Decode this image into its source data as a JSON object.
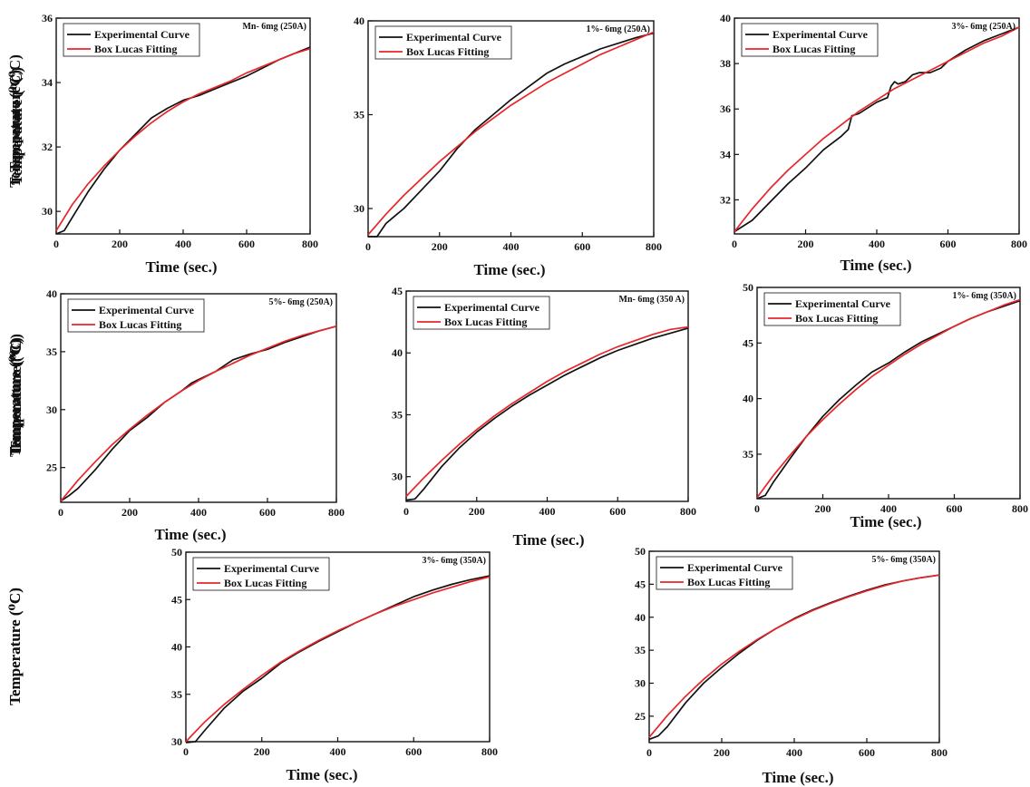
{
  "chart_data": [
    {
      "type": "line",
      "annotation": "Mn- 6mg (250A)",
      "xlabel": "Time (sec.)",
      "ylabel": "Temperature (⁰C)",
      "xlim": [
        0,
        800
      ],
      "ylim": [
        29.3,
        36
      ],
      "xticks": [
        0,
        200,
        400,
        600,
        800
      ],
      "yticks": [
        30,
        32,
        34,
        36
      ],
      "legend": [
        "Experimental Curve",
        "Box Lucas Fitting"
      ],
      "series": [
        {
          "name": "Experimental Curve",
          "x": [
            0,
            25,
            50,
            100,
            150,
            200,
            250,
            300,
            350,
            400,
            450,
            500,
            550,
            600,
            650,
            700,
            750,
            800
          ],
          "values": [
            29.3,
            29.4,
            29.8,
            30.6,
            31.3,
            31.9,
            32.4,
            32.9,
            33.2,
            33.45,
            33.6,
            33.8,
            34.0,
            34.2,
            34.45,
            34.7,
            34.9,
            35.1
          ]
        },
        {
          "name": "Box Lucas Fitting",
          "x": [
            0,
            50,
            100,
            150,
            200,
            250,
            300,
            350,
            400,
            450,
            500,
            550,
            600,
            650,
            700,
            750,
            800
          ],
          "values": [
            29.4,
            30.2,
            30.85,
            31.4,
            31.9,
            32.35,
            32.75,
            33.1,
            33.4,
            33.65,
            33.85,
            34.05,
            34.3,
            34.5,
            34.7,
            34.9,
            35.05
          ]
        }
      ]
    },
    {
      "type": "line",
      "annotation": "1%- 6mg (250A)",
      "xlabel": "Time (sec.)",
      "ylabel": "Temperature (⁰C)",
      "xlim": [
        0,
        800
      ],
      "ylim": [
        28.5,
        40
      ],
      "xticks": [
        0,
        200,
        400,
        600,
        800
      ],
      "yticks": [
        30,
        35,
        40
      ],
      "legend": [
        "Experimental Curve",
        "Box Lucas Fitting"
      ],
      "series": [
        {
          "name": "Experimental Curve",
          "x": [
            0,
            25,
            50,
            75,
            100,
            150,
            200,
            250,
            300,
            350,
            400,
            450,
            500,
            550,
            600,
            650,
            700,
            750,
            800
          ],
          "values": [
            28.5,
            28.5,
            29.2,
            29.6,
            30.0,
            31.0,
            32.0,
            33.2,
            34.2,
            35.0,
            35.8,
            36.5,
            37.2,
            37.7,
            38.1,
            38.5,
            38.8,
            39.1,
            39.35
          ]
        },
        {
          "name": "Box Lucas Fitting",
          "x": [
            0,
            50,
            100,
            150,
            200,
            250,
            300,
            350,
            400,
            450,
            500,
            550,
            600,
            650,
            700,
            750,
            800
          ],
          "values": [
            28.6,
            29.7,
            30.7,
            31.6,
            32.5,
            33.3,
            34.1,
            34.8,
            35.5,
            36.1,
            36.7,
            37.2,
            37.7,
            38.2,
            38.6,
            39.0,
            39.4
          ]
        }
      ]
    },
    {
      "type": "line",
      "annotation": "3%- 6mg (250A)",
      "xlabel": "Time (sec.)",
      "ylabel": "Temperature (⁰C)",
      "xlim": [
        0,
        800
      ],
      "ylim": [
        30.5,
        40
      ],
      "xticks": [
        0,
        200,
        400,
        600,
        800
      ],
      "yticks": [
        32,
        34,
        36,
        38,
        40
      ],
      "legend": [
        "Experimental Curve",
        "Box Lucas Fitting"
      ],
      "series": [
        {
          "name": "Experimental Curve",
          "x": [
            0,
            50,
            100,
            150,
            200,
            250,
            300,
            320,
            330,
            350,
            400,
            430,
            440,
            450,
            460,
            480,
            500,
            520,
            550,
            580,
            600,
            650,
            700,
            750,
            800
          ],
          "values": [
            30.6,
            31.1,
            31.9,
            32.7,
            33.4,
            34.2,
            34.8,
            35.1,
            35.7,
            35.8,
            36.3,
            36.5,
            37.0,
            37.2,
            37.1,
            37.2,
            37.5,
            37.6,
            37.6,
            37.8,
            38.1,
            38.6,
            39.0,
            39.3,
            39.6
          ]
        },
        {
          "name": "Box Lucas Fitting",
          "x": [
            0,
            50,
            100,
            150,
            200,
            250,
            300,
            350,
            400,
            450,
            500,
            550,
            600,
            650,
            700,
            750,
            800
          ],
          "values": [
            30.6,
            31.6,
            32.5,
            33.3,
            34.0,
            34.7,
            35.3,
            35.9,
            36.4,
            36.9,
            37.3,
            37.7,
            38.1,
            38.5,
            38.9,
            39.2,
            39.6
          ]
        }
      ]
    },
    {
      "type": "line",
      "annotation": "5%- 6mg (250A)",
      "xlabel": "Time (sec.)",
      "ylabel": "Temperature (⁰C)",
      "xlim": [
        0,
        800
      ],
      "ylim": [
        22,
        40
      ],
      "xticks": [
        0,
        200,
        400,
        600,
        800
      ],
      "yticks": [
        25,
        30,
        35,
        40
      ],
      "legend": [
        "Experimental Curve",
        "Box Lucas Fitting"
      ],
      "series": [
        {
          "name": "Experimental Curve",
          "x": [
            0,
            25,
            50,
            100,
            150,
            200,
            250,
            300,
            350,
            380,
            400,
            450,
            500,
            550,
            600,
            650,
            700,
            750,
            800
          ],
          "values": [
            22.1,
            22.6,
            23.2,
            24.8,
            26.6,
            28.2,
            29.3,
            30.6,
            31.6,
            32.3,
            32.6,
            33.3,
            34.3,
            34.8,
            35.2,
            35.8,
            36.3,
            36.8,
            37.2
          ]
        },
        {
          "name": "Box Lucas Fitting",
          "x": [
            0,
            50,
            100,
            150,
            200,
            250,
            300,
            350,
            400,
            450,
            500,
            550,
            600,
            650,
            700,
            750,
            800
          ],
          "values": [
            22.1,
            23.9,
            25.5,
            27.0,
            28.3,
            29.5,
            30.6,
            31.6,
            32.5,
            33.3,
            34.0,
            34.7,
            35.3,
            35.9,
            36.4,
            36.8,
            37.2
          ]
        }
      ]
    },
    {
      "type": "line",
      "annotation": "Mn- 6mg (350 A)",
      "xlabel": "Time (sec.)",
      "ylabel": "Temperature (⁰C)",
      "xlim": [
        0,
        800
      ],
      "ylim": [
        28,
        45
      ],
      "xticks": [
        0,
        200,
        400,
        600,
        800
      ],
      "yticks": [
        30,
        35,
        40,
        45
      ],
      "legend": [
        "Experimental Curve",
        "Box Lucas Fitting"
      ],
      "series": [
        {
          "name": "Experimental Curve",
          "x": [
            0,
            25,
            50,
            100,
            150,
            200,
            250,
            300,
            350,
            400,
            450,
            500,
            550,
            600,
            650,
            700,
            750,
            800
          ],
          "values": [
            28.1,
            28.2,
            29.0,
            30.8,
            32.3,
            33.6,
            34.7,
            35.7,
            36.6,
            37.4,
            38.2,
            38.9,
            39.6,
            40.2,
            40.7,
            41.2,
            41.6,
            42.0
          ]
        },
        {
          "name": "Box Lucas Fitting",
          "x": [
            0,
            50,
            100,
            150,
            200,
            250,
            300,
            350,
            400,
            450,
            500,
            550,
            600,
            650,
            700,
            750,
            800
          ],
          "values": [
            28.4,
            29.9,
            31.3,
            32.6,
            33.8,
            34.9,
            35.9,
            36.8,
            37.7,
            38.5,
            39.2,
            39.9,
            40.5,
            41.0,
            41.5,
            41.9,
            42.1
          ]
        }
      ]
    },
    {
      "type": "line",
      "annotation": "1%- 6mg (350A)",
      "xlabel": "Time (sec.)",
      "ylabel": "Temperature (⁰C)",
      "xlim": [
        0,
        800
      ],
      "ylim": [
        31,
        50
      ],
      "xticks": [
        0,
        200,
        400,
        600,
        800
      ],
      "yticks": [
        35,
        40,
        45,
        50
      ],
      "legend": [
        "Experimental Curve",
        "Box Lucas Fitting"
      ],
      "series": [
        {
          "name": "Experimental Curve",
          "x": [
            0,
            25,
            50,
            100,
            150,
            200,
            250,
            300,
            350,
            400,
            450,
            500,
            550,
            600,
            650,
            700,
            750,
            800
          ],
          "values": [
            31.0,
            31.3,
            32.5,
            34.6,
            36.6,
            38.4,
            39.9,
            41.2,
            42.4,
            43.2,
            44.2,
            45.1,
            45.8,
            46.5,
            47.2,
            47.8,
            48.3,
            48.8
          ]
        },
        {
          "name": "Box Lucas Fitting",
          "x": [
            0,
            50,
            100,
            150,
            200,
            250,
            300,
            350,
            400,
            450,
            500,
            550,
            600,
            650,
            700,
            750,
            800
          ],
          "values": [
            31.1,
            33.1,
            34.9,
            36.6,
            38.1,
            39.5,
            40.8,
            42.0,
            43.0,
            44.0,
            44.9,
            45.7,
            46.5,
            47.2,
            47.8,
            48.4,
            48.9
          ]
        }
      ]
    },
    {
      "type": "line",
      "annotation": "3%- 6mg (350A)",
      "xlabel": "Time (sec.)",
      "ylabel": "Temperature (⁰C)",
      "xlim": [
        0,
        800
      ],
      "ylim": [
        30,
        50
      ],
      "xticks": [
        0,
        200,
        400,
        600,
        800
      ],
      "yticks": [
        30,
        35,
        40,
        45,
        50
      ],
      "legend": [
        "Experimental Curve",
        "Box Lucas Fitting"
      ],
      "series": [
        {
          "name": "Experimental Curve",
          "x": [
            0,
            25,
            50,
            100,
            150,
            200,
            250,
            300,
            350,
            400,
            450,
            500,
            550,
            600,
            650,
            700,
            750,
            800
          ],
          "values": [
            29.9,
            30.0,
            31.2,
            33.5,
            35.3,
            36.7,
            38.3,
            39.5,
            40.6,
            41.6,
            42.6,
            43.5,
            44.4,
            45.3,
            46.0,
            46.6,
            47.1,
            47.5
          ]
        },
        {
          "name": "Box Lucas Fitting",
          "x": [
            0,
            50,
            100,
            150,
            200,
            250,
            300,
            350,
            400,
            450,
            500,
            550,
            600,
            650,
            700,
            750,
            800
          ],
          "values": [
            30.0,
            32.1,
            33.9,
            35.5,
            37.0,
            38.4,
            39.6,
            40.7,
            41.7,
            42.6,
            43.5,
            44.3,
            45.0,
            45.7,
            46.3,
            46.9,
            47.4
          ]
        }
      ]
    },
    {
      "type": "line",
      "annotation": "5%- 6mg (350A)",
      "xlabel": "Time (sec.)",
      "ylabel": "Temperature (⁰C)",
      "xlim": [
        0,
        800
      ],
      "ylim": [
        21,
        50
      ],
      "xticks": [
        0,
        200,
        400,
        600,
        800
      ],
      "yticks": [
        25,
        30,
        35,
        40,
        45,
        50
      ],
      "legend": [
        "Experimental Curve",
        "Box Lucas Fitting"
      ],
      "series": [
        {
          "name": "Experimental Curve",
          "x": [
            0,
            25,
            50,
            100,
            150,
            200,
            250,
            300,
            350,
            400,
            450,
            500,
            550,
            600,
            650,
            700,
            750,
            800
          ],
          "values": [
            21.5,
            22.0,
            23.4,
            27.0,
            30.0,
            32.4,
            34.6,
            36.6,
            38.3,
            39.8,
            41.1,
            42.2,
            43.2,
            44.1,
            44.9,
            45.5,
            46.0,
            46.4
          ]
        },
        {
          "name": "Box Lucas Fitting",
          "x": [
            0,
            50,
            100,
            150,
            200,
            250,
            300,
            350,
            400,
            450,
            500,
            550,
            600,
            650,
            700,
            750,
            800
          ],
          "values": [
            21.8,
            25.1,
            28.0,
            30.6,
            32.9,
            34.9,
            36.7,
            38.3,
            39.7,
            41.0,
            42.1,
            43.1,
            44.0,
            44.8,
            45.5,
            46.0,
            46.4
          ]
        }
      ]
    }
  ],
  "colors": {
    "experimental": "#111111",
    "fitting": "#e8262a"
  }
}
